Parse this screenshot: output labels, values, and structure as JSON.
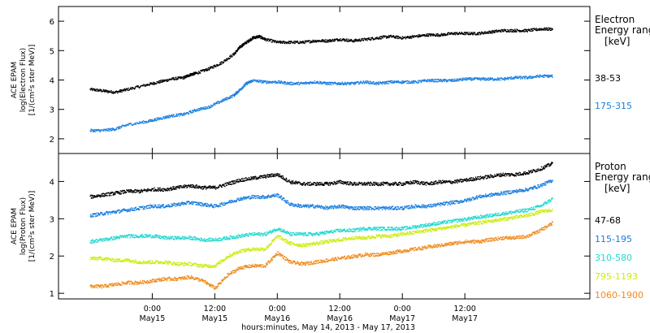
{
  "chart_data": [
    {
      "type": "scatter",
      "ylabel_lines": [
        "ACE EPAM",
        "log(Electron Flux)",
        "[1/(cm²s ster MeV)]"
      ],
      "ylim": [
        1.5,
        6.5
      ],
      "yticks": [
        2,
        3,
        4,
        5,
        6
      ],
      "legend_title_lines": [
        "Electron",
        "Energy range",
        "[keV]"
      ],
      "series": [
        {
          "name": "38-53",
          "color": "#000000",
          "x": [
            0.0,
            0.1,
            0.2,
            0.3,
            0.45,
            0.55,
            0.65,
            0.75,
            0.8,
            0.85,
            0.95,
            1.05,
            1.15,
            1.2,
            1.25,
            1.3,
            1.35,
            1.4,
            1.5,
            1.6,
            1.7,
            1.8,
            1.9,
            2.0,
            2.1,
            2.2,
            2.3,
            2.4,
            2.5,
            2.6,
            2.7,
            2.8,
            2.9,
            3.0,
            3.1,
            3.2,
            3.3,
            3.4,
            3.5,
            3.6,
            3.7
          ],
          "y": [
            3.7,
            3.65,
            3.6,
            3.7,
            3.85,
            3.95,
            4.05,
            4.1,
            4.2,
            4.25,
            4.4,
            4.6,
            4.9,
            5.15,
            5.3,
            5.45,
            5.5,
            5.4,
            5.3,
            5.3,
            5.3,
            5.35,
            5.35,
            5.4,
            5.35,
            5.4,
            5.45,
            5.5,
            5.45,
            5.5,
            5.55,
            5.55,
            5.6,
            5.6,
            5.6,
            5.65,
            5.7,
            5.7,
            5.7,
            5.75,
            5.75
          ]
        },
        {
          "name": "175-315",
          "color": "#1a7fe0",
          "x": [
            0.0,
            0.1,
            0.2,
            0.3,
            0.45,
            0.55,
            0.65,
            0.75,
            0.85,
            0.95,
            1.05,
            1.15,
            1.2,
            1.25,
            1.3,
            1.4,
            1.5,
            1.6,
            1.7,
            1.8,
            1.9,
            2.0,
            2.1,
            2.2,
            2.3,
            2.4,
            2.5,
            2.6,
            2.7,
            2.8,
            2.9,
            3.0,
            3.1,
            3.2,
            3.3,
            3.4,
            3.5,
            3.6,
            3.7
          ],
          "y": [
            2.3,
            2.3,
            2.35,
            2.5,
            2.6,
            2.7,
            2.8,
            2.85,
            3.0,
            3.1,
            3.3,
            3.5,
            3.7,
            3.9,
            4.0,
            3.95,
            3.95,
            3.9,
            3.9,
            3.95,
            3.9,
            3.9,
            3.9,
            3.95,
            3.9,
            3.95,
            3.95,
            3.95,
            4.0,
            4.0,
            4.0,
            4.05,
            4.05,
            4.05,
            4.05,
            4.1,
            4.1,
            4.15,
            4.15
          ]
        }
      ]
    },
    {
      "type": "scatter",
      "ylabel_lines": [
        "ACE EPAM",
        "log(Proton Flux)",
        "[1/(cm²s ster MeV)]"
      ],
      "ylim": [
        0.85,
        4.75
      ],
      "yticks": [
        1,
        2,
        3,
        4
      ],
      "legend_title_lines": [
        "Proton",
        "Energy range",
        "[keV]"
      ],
      "xticks": [
        {
          "x": 0.5,
          "time": "0:00",
          "date": "May15"
        },
        {
          "x": 1.0,
          "time": "12:00",
          "date": "May15"
        },
        {
          "x": 1.5,
          "time": "0:00",
          "date": "May16"
        },
        {
          "x": 2.0,
          "time": "12:00",
          "date": "May16"
        },
        {
          "x": 2.5,
          "time": "0:00",
          "date": "May17"
        },
        {
          "x": 3.0,
          "time": "12:00",
          "date": "May17"
        }
      ],
      "xlabel": "hours:minutes, May 14, 2013 - May 17, 2013",
      "series": [
        {
          "name": "47-68",
          "color": "#000000",
          "x": [
            0.0,
            0.1,
            0.2,
            0.3,
            0.4,
            0.5,
            0.6,
            0.7,
            0.8,
            0.9,
            1.0,
            1.1,
            1.2,
            1.3,
            1.4,
            1.5,
            1.6,
            1.7,
            1.8,
            1.9,
            2.0,
            2.1,
            2.2,
            2.3,
            2.4,
            2.5,
            2.6,
            2.7,
            2.8,
            2.9,
            3.0,
            3.1,
            3.2,
            3.3,
            3.4,
            3.5,
            3.6,
            3.7
          ],
          "y": [
            3.6,
            3.65,
            3.7,
            3.75,
            3.75,
            3.8,
            3.8,
            3.85,
            3.9,
            3.85,
            3.85,
            3.95,
            4.05,
            4.1,
            4.15,
            4.2,
            4.0,
            3.95,
            3.95,
            3.95,
            4.0,
            3.95,
            3.95,
            3.95,
            3.95,
            3.95,
            4.0,
            3.95,
            4.0,
            4.0,
            4.05,
            4.1,
            4.15,
            4.2,
            4.2,
            4.25,
            4.35,
            4.5
          ]
        },
        {
          "name": "115-195",
          "color": "#1a7fe0",
          "x": [
            0.0,
            0.1,
            0.2,
            0.3,
            0.4,
            0.5,
            0.6,
            0.7,
            0.8,
            0.9,
            1.0,
            1.1,
            1.2,
            1.3,
            1.4,
            1.5,
            1.6,
            1.7,
            1.8,
            1.9,
            2.0,
            2.1,
            2.2,
            2.3,
            2.4,
            2.5,
            2.6,
            2.7,
            2.8,
            2.9,
            3.0,
            3.1,
            3.2,
            3.3,
            3.4,
            3.5,
            3.6,
            3.7
          ],
          "y": [
            3.1,
            3.15,
            3.2,
            3.25,
            3.3,
            3.35,
            3.35,
            3.4,
            3.45,
            3.4,
            3.35,
            3.45,
            3.55,
            3.6,
            3.6,
            3.65,
            3.4,
            3.35,
            3.35,
            3.3,
            3.35,
            3.3,
            3.3,
            3.3,
            3.3,
            3.3,
            3.35,
            3.35,
            3.4,
            3.45,
            3.5,
            3.6,
            3.65,
            3.7,
            3.75,
            3.8,
            3.9,
            4.05
          ]
        },
        {
          "name": "310-580",
          "color": "#22d8d0",
          "x": [
            0.0,
            0.1,
            0.2,
            0.3,
            0.4,
            0.5,
            0.6,
            0.7,
            0.8,
            0.9,
            1.0,
            1.1,
            1.2,
            1.3,
            1.4,
            1.5,
            1.6,
            1.7,
            1.8,
            1.9,
            2.0,
            2.1,
            2.2,
            2.3,
            2.4,
            2.5,
            2.6,
            2.7,
            2.8,
            2.9,
            3.0,
            3.1,
            3.2,
            3.3,
            3.4,
            3.5,
            3.6,
            3.7
          ],
          "y": [
            2.4,
            2.45,
            2.5,
            2.55,
            2.55,
            2.55,
            2.5,
            2.5,
            2.5,
            2.45,
            2.45,
            2.5,
            2.55,
            2.6,
            2.6,
            2.75,
            2.6,
            2.6,
            2.6,
            2.65,
            2.7,
            2.7,
            2.75,
            2.75,
            2.75,
            2.75,
            2.8,
            2.85,
            2.9,
            2.95,
            3.0,
            3.05,
            3.1,
            3.15,
            3.2,
            3.25,
            3.35,
            3.55
          ]
        },
        {
          "name": "795-1193",
          "color": "#cdeb10",
          "x": [
            0.0,
            0.1,
            0.2,
            0.3,
            0.4,
            0.5,
            0.6,
            0.7,
            0.8,
            0.9,
            1.0,
            1.1,
            1.2,
            1.3,
            1.4,
            1.5,
            1.6,
            1.7,
            1.8,
            1.9,
            2.0,
            2.1,
            2.2,
            2.3,
            2.4,
            2.5,
            2.6,
            2.7,
            2.8,
            2.9,
            3.0,
            3.1,
            3.2,
            3.3,
            3.4,
            3.5,
            3.6,
            3.7
          ],
          "y": [
            1.95,
            1.95,
            1.9,
            1.9,
            1.85,
            1.85,
            1.85,
            1.8,
            1.8,
            1.75,
            1.75,
            2.0,
            2.15,
            2.2,
            2.2,
            2.55,
            2.35,
            2.3,
            2.35,
            2.4,
            2.45,
            2.5,
            2.5,
            2.55,
            2.55,
            2.6,
            2.65,
            2.7,
            2.75,
            2.8,
            2.85,
            2.9,
            2.95,
            3.0,
            3.05,
            3.1,
            3.2,
            3.25
          ]
        },
        {
          "name": "1060-1900",
          "color": "#f08a1c",
          "x": [
            0.0,
            0.1,
            0.2,
            0.3,
            0.4,
            0.5,
            0.6,
            0.7,
            0.8,
            0.9,
            1.0,
            1.1,
            1.2,
            1.3,
            1.4,
            1.5,
            1.6,
            1.7,
            1.8,
            1.9,
            2.0,
            2.1,
            2.2,
            2.3,
            2.4,
            2.5,
            2.6,
            2.7,
            2.8,
            2.9,
            3.0,
            3.1,
            3.2,
            3.3,
            3.4,
            3.5,
            3.6,
            3.7
          ],
          "y": [
            1.2,
            1.2,
            1.25,
            1.3,
            1.3,
            1.35,
            1.4,
            1.4,
            1.45,
            1.35,
            1.15,
            1.5,
            1.7,
            1.75,
            1.75,
            2.1,
            1.85,
            1.8,
            1.85,
            1.9,
            1.95,
            2.0,
            2.05,
            2.05,
            2.1,
            2.15,
            2.2,
            2.25,
            2.3,
            2.35,
            2.4,
            2.4,
            2.45,
            2.5,
            2.5,
            2.55,
            2.7,
            2.9
          ]
        }
      ]
    }
  ]
}
